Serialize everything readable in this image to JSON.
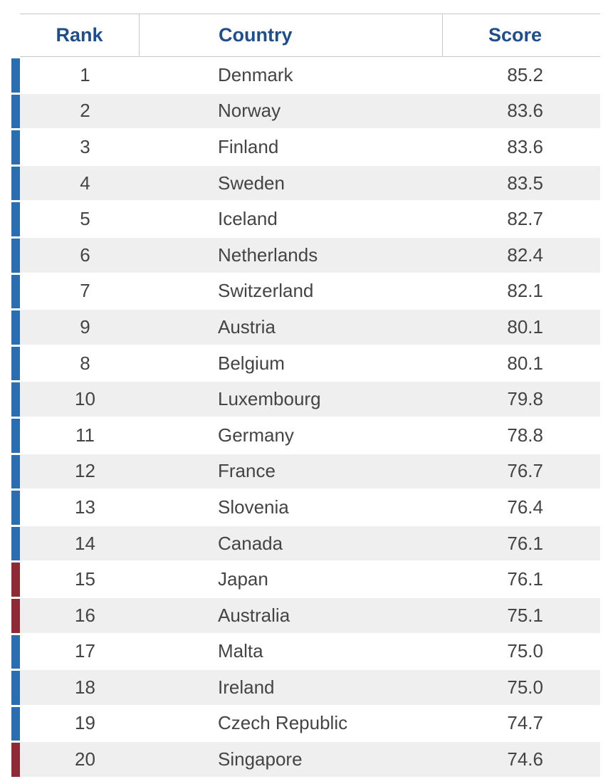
{
  "table": {
    "headers": {
      "rank": "Rank",
      "country": "Country",
      "score": "Score"
    },
    "marker_colors": {
      "blue": "#2a6db0",
      "red": "#8e2a35"
    },
    "rows": [
      {
        "rank": "1",
        "country": "Denmark",
        "score": "85.2",
        "marker": "blue"
      },
      {
        "rank": "2",
        "country": "Norway",
        "score": "83.6",
        "marker": "blue"
      },
      {
        "rank": "3",
        "country": "Finland",
        "score": "83.6",
        "marker": "blue"
      },
      {
        "rank": "4",
        "country": "Sweden",
        "score": "83.5",
        "marker": "blue"
      },
      {
        "rank": "5",
        "country": "Iceland",
        "score": "82.7",
        "marker": "blue"
      },
      {
        "rank": "6",
        "country": "Netherlands",
        "score": "82.4",
        "marker": "blue"
      },
      {
        "rank": "7",
        "country": "Switzerland",
        "score": "82.1",
        "marker": "blue"
      },
      {
        "rank": "9",
        "country": "Austria",
        "score": "80.1",
        "marker": "blue"
      },
      {
        "rank": "8",
        "country": "Belgium",
        "score": "80.1",
        "marker": "blue"
      },
      {
        "rank": "10",
        "country": "Luxembourg",
        "score": "79.8",
        "marker": "blue"
      },
      {
        "rank": "11",
        "country": "Germany",
        "score": "78.8",
        "marker": "blue"
      },
      {
        "rank": "12",
        "country": "France",
        "score": "76.7",
        "marker": "blue"
      },
      {
        "rank": "13",
        "country": "Slovenia",
        "score": "76.4",
        "marker": "blue"
      },
      {
        "rank": "14",
        "country": "Canada",
        "score": "76.1",
        "marker": "blue"
      },
      {
        "rank": "15",
        "country": "Japan",
        "score": "76.1",
        "marker": "red"
      },
      {
        "rank": "16",
        "country": "Australia",
        "score": "75.1",
        "marker": "red"
      },
      {
        "rank": "17",
        "country": "Malta",
        "score": "75.0",
        "marker": "blue"
      },
      {
        "rank": "18",
        "country": "Ireland",
        "score": "75.0",
        "marker": "blue"
      },
      {
        "rank": "19",
        "country": "Czech Republic",
        "score": "74.7",
        "marker": "blue"
      },
      {
        "rank": "20",
        "country": "Singapore",
        "score": "74.6",
        "marker": "red"
      }
    ]
  }
}
